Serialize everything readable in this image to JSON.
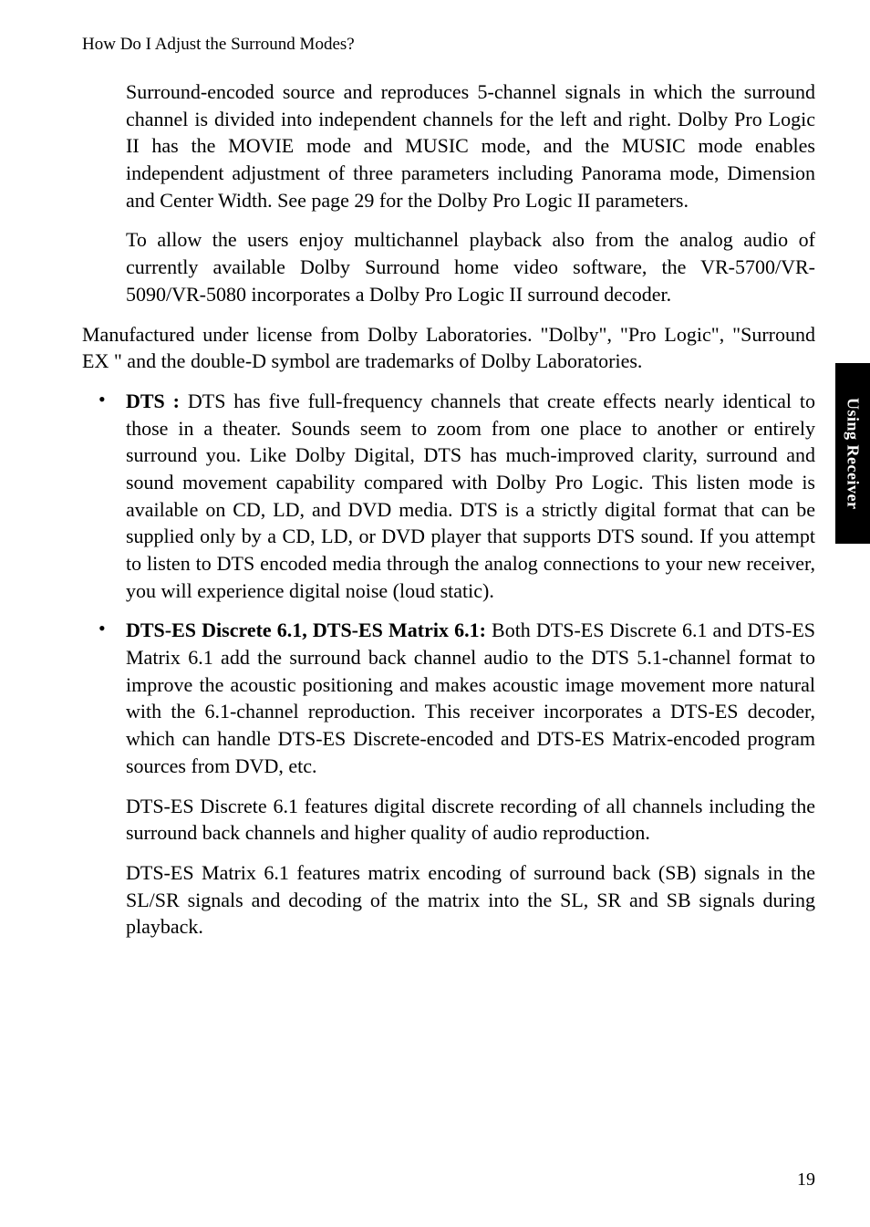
{
  "header": "How Do I Adjust the Surround Modes?",
  "para_surround": "Surround-encoded source and reproduces 5-channel signals in which the surround channel is divided into independent channels for the left and right. Dolby Pro Logic II has the MOVIE mode and MUSIC mode, and the MUSIC mode enables independent adjustment of three parameters including Panorama mode, Dimension and Center Width. See page 29 for the Dolby Pro Logic II parameters.",
  "para_allow": "To allow the users enjoy multichannel playback also from the analog audio of currently available Dolby Surround home video software, the VR-5700/VR-5090/VR-5080 incorporates a Dolby Pro Logic II surround decoder.",
  "para_mfg": "Manufactured under license from Dolby Laboratories. \"Dolby\", \"Pro Logic\", \"Surround EX \" and the double-D symbol are trademarks of Dolby Laboratories.",
  "dts_label": "DTS : ",
  "dts_body": "DTS has five full-frequency channels that create effects nearly identical to those in a theater. Sounds seem to zoom from one place to another or entirely surround you. Like Dolby Digital, DTS has much-improved clarity, surround and sound movement capability compared with Dolby Pro Logic. This listen mode is available on CD, LD, and DVD media. DTS is a strictly digital format that can be supplied only by a CD, LD, or DVD player that supports DTS sound. If you attempt to listen to DTS encoded media through the analog connections to your new receiver, you will experience digital noise (loud static).",
  "dtses_label": "DTS-ES Discrete 6.1, DTS-ES Matrix 6.1: ",
  "dtses_body": "Both DTS-ES Discrete 6.1 and DTS-ES Matrix 6.1 add the surround back channel audio to the DTS 5.1-channel format to improve the acoustic positioning and makes acoustic image movement more natural with the 6.1-channel reproduction. This receiver incorporates a DTS-ES decoder, which can handle DTS-ES Discrete-encoded and DTS-ES Matrix-encoded program sources from DVD, etc.",
  "para_discrete": "DTS-ES Discrete 6.1 features digital discrete recording of all channels including the surround back channels and higher quality of audio reproduction.",
  "para_matrix": "DTS-ES Matrix 6.1 features matrix encoding of surround back (SB) signals in the SL/SR signals and decoding of the matrix into the SL, SR and SB signals during playback.",
  "side_tab": "Using Receiver",
  "page_number": "19",
  "colors": {
    "bg": "#ffffff",
    "text": "#000000",
    "tab_bg": "#000000",
    "tab_text": "#ffffff"
  },
  "fonts": {
    "body_size": 22,
    "header_size": 19,
    "tab_size": 18,
    "pagenum_size": 20
  }
}
